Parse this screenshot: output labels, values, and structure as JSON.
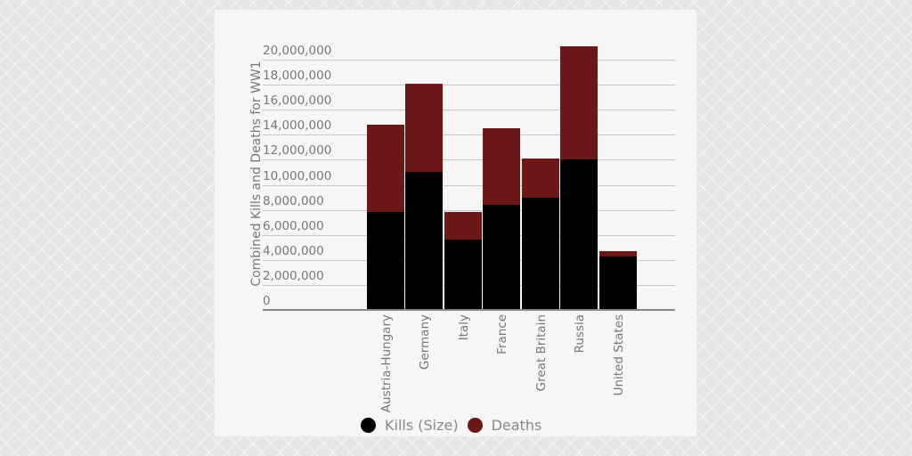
{
  "chart_data": {
    "type": "bar",
    "stacked": true,
    "title": "",
    "xlabel": "",
    "ylabel": "Combined Kills and Deaths for WW1",
    "ylim": [
      0,
      20000000
    ],
    "yticks": [
      "0",
      "2,000,000",
      "4,000,000",
      "6,000,000",
      "8,000,000",
      "10,000,000",
      "12,000,000",
      "14,000,000",
      "16,000,000",
      "18,000,000",
      "20,000,000"
    ],
    "categories": [
      "Austria-Hungary",
      "Germany",
      "Italy",
      "France",
      "Great Britain",
      "Russia",
      "United States"
    ],
    "series": [
      {
        "name": "Kills (Size)",
        "color": "#000000",
        "values": [
          7800000,
          11000000,
          5600000,
          8400000,
          9000000,
          12000000,
          4300000
        ]
      },
      {
        "name": "Deaths",
        "color": "#6a1818",
        "values": [
          7000000,
          7100000,
          2200000,
          6100000,
          3100000,
          9100000,
          400000
        ]
      }
    ],
    "legend": {
      "position": "bottom",
      "entries": [
        "Kills (Size)",
        "Deaths"
      ]
    },
    "grid": true
  }
}
